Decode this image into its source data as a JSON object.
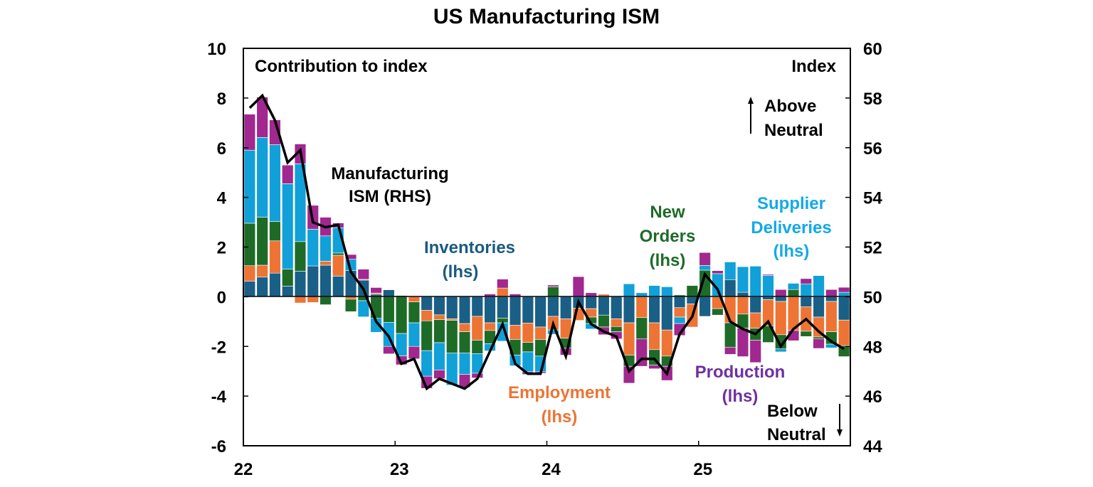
{
  "chart_data": {
    "type": "bar",
    "title": "US Manufacturing ISM",
    "left_axis_label": "Contribution to index",
    "right_axis_label": "Index",
    "ylim_left": [
      -6,
      10
    ],
    "ylim_right": [
      44,
      60
    ],
    "left_ticks": [
      "10",
      "8",
      "6",
      "4",
      "2",
      "0",
      "-2",
      "-4",
      "-6"
    ],
    "right_ticks": [
      "60",
      "58",
      "56",
      "54",
      "52",
      "50",
      "48",
      "46",
      "44"
    ],
    "x_ticks": [
      "22",
      "23",
      "24",
      "25"
    ],
    "grid": false,
    "stacked": true,
    "annotations": {
      "above": [
        "Above",
        "Neutral"
      ],
      "below": [
        "Below",
        "Neutral"
      ],
      "line_label": [
        "Manufacturing",
        "ISM (RHS)"
      ]
    },
    "series": [
      {
        "name": "Inventories (lhs)",
        "label_lines": [
          "Inventories",
          "(lhs)"
        ],
        "color": "#1a5f86",
        "label_color": "#1a5a80",
        "values": [
          0.63,
          0.79,
          0.95,
          0.43,
          1.03,
          1.24,
          1.27,
          0.83,
          1.06,
          0.67,
          0.1,
          0.28,
          0.05,
          0,
          -0.55,
          -0.73,
          -0.89,
          -1.08,
          -0.79,
          -1.05,
          -0.86,
          -1.15,
          -1.06,
          -1.22,
          -0.79,
          -0.89,
          -0.46,
          -0.48,
          -0.74,
          -0.89,
          -1.05,
          0,
          -1.05,
          -1.34,
          -0.44,
          -0.29,
          -0.79,
          0,
          0.69,
          0.18,
          -0.65,
          -0.12,
          -0.19,
          0,
          -0.41,
          -0.82,
          -0.19,
          -0.94
        ]
      },
      {
        "name": "Employment (lhs)",
        "label_lines": [
          "Employment",
          "(lhs)"
        ],
        "color": "#ed7434",
        "label_color": "#ed7434",
        "values": [
          0.62,
          0.48,
          1.3,
          0,
          -0.25,
          -0.23,
          0.16,
          0.84,
          -0.1,
          0.03,
          0.05,
          0.02,
          0,
          -0.21,
          -0.42,
          -0.19,
          -0.06,
          -0.33,
          -0.96,
          -0.31,
          0.35,
          -0.57,
          -0.78,
          -0.5,
          -0.55,
          -0.78,
          -0.49,
          -0.34,
          0.1,
          -0.31,
          -1.3,
          -0.84,
          -1.08,
          -1.05,
          -0.38,
          -0.93,
          0,
          -0.48,
          -1.05,
          -0.7,
          -0.62,
          -1.05,
          -1.34,
          -1.36,
          -0.98,
          -0.8,
          -1.22,
          -1.03
        ]
      },
      {
        "name": "New Orders (lhs)",
        "label_lines": [
          "New",
          "Orders",
          "(lhs)"
        ],
        "color": "#1e6b28",
        "label_color": "#1e6b28",
        "values": [
          1.71,
          1.93,
          0.78,
          0.68,
          1.19,
          0,
          -0.32,
          0.09,
          -0.5,
          -0.16,
          -0.87,
          -1.03,
          -1.48,
          -0.84,
          -1.2,
          -0.93,
          -1.32,
          -0.86,
          -0.54,
          -0.53,
          -0.19,
          -0.63,
          -0.38,
          -0.67,
          0.4,
          -0.39,
          0,
          -0.26,
          -0.48,
          -0.21,
          -0.45,
          -0.86,
          -0.62,
          -0.41,
          0.07,
          0.45,
          1.07,
          -0.26,
          -0.98,
          -0.57,
          -0.48,
          -0.67,
          -0.57,
          0.29,
          -0.21,
          -0.08,
          -0.5,
          -0.44
        ]
      },
      {
        "name": "Supplier Deliveries (lhs)",
        "label_lines": [
          "Supplier",
          "Deliveries",
          "(lhs)"
        ],
        "color": "#12a0d8",
        "label_color": "#13a9e8",
        "values": [
          2.94,
          3.21,
          3.09,
          3.44,
          3.13,
          1.48,
          1.02,
          1.02,
          0.45,
          -0.65,
          -0.56,
          -0.97,
          -0.9,
          -0.95,
          -1.03,
          -1.1,
          -1.29,
          -0.86,
          -0.79,
          -0.29,
          -0.74,
          -0.43,
          -0.8,
          -0.63,
          -0.17,
          0,
          0,
          -0.22,
          0,
          0,
          0.52,
          0.16,
          0.45,
          0.4,
          -0.26,
          0,
          0.19,
          0.93,
          0.71,
          1.03,
          1.23,
          0.86,
          -0.12,
          0.25,
          0.52,
          0.85,
          -0.15,
          0.18
        ]
      },
      {
        "name": "Production (lhs)",
        "label_lines": [
          "Production",
          "(lhs)"
        ],
        "color": "#a0288f",
        "label_color": "#7030a0",
        "values": [
          1.45,
          1.63,
          1.0,
          0.75,
          0.8,
          0.96,
          0.75,
          0.19,
          0.19,
          0.41,
          0.22,
          -0.3,
          -0.36,
          -0.5,
          -0.49,
          -0.35,
          0,
          -0.52,
          -0.19,
          0.11,
          0.36,
          0.11,
          -0.11,
          -0.06,
          0.07,
          -0.29,
          0.81,
          0.16,
          -0.31,
          -0.29,
          -0.68,
          -1.1,
          -0.15,
          -0.57,
          -0.48,
          0,
          0.52,
          0.12,
          -0.29,
          -1.14,
          -0.9,
          0.04,
          0.29,
          -0.41,
          0.21,
          -0.38,
          0.29,
          0.2
        ]
      }
    ],
    "line": {
      "name": "Manufacturing ISM (RHS)",
      "color": "#000000",
      "values": [
        57.6,
        58.1,
        57.1,
        55.4,
        55.9,
        53.0,
        52.8,
        52.9,
        51.0,
        50.3,
        49.0,
        48.4,
        47.3,
        47.5,
        46.3,
        46.7,
        46.5,
        46.3,
        46.7,
        47.8,
        48.9,
        47.3,
        46.9,
        46.9,
        48.9,
        47.6,
        49.8,
        48.9,
        48.6,
        48.4,
        47.0,
        47.5,
        47.5,
        46.9,
        48.5,
        49.2,
        50.9,
        50.3,
        49.0,
        48.7,
        48.5,
        49.0,
        48.0,
        48.7,
        49.1,
        48.6,
        48.2,
        47.9
      ]
    }
  }
}
